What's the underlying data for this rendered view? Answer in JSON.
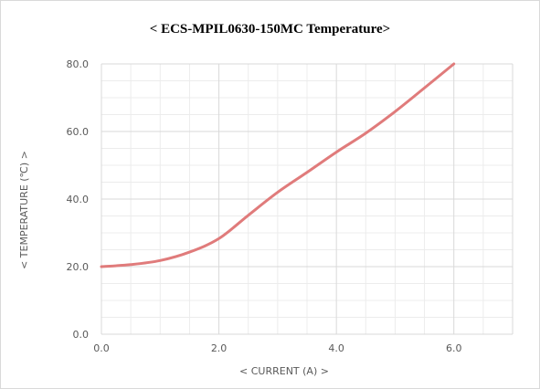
{
  "chart_data": {
    "type": "line",
    "title": "< ECS-MPIL0630-150MC  Temperature>",
    "xlabel": "< CURRENT (A) >",
    "ylabel": "< TEMPERATURE (℃) >",
    "xlim": [
      0,
      7
    ],
    "ylim": [
      0,
      80
    ],
    "x_ticks": [
      "0.0",
      "2.0",
      "4.0",
      "6.0"
    ],
    "x_tick_values": [
      0,
      2,
      4,
      6
    ],
    "y_ticks": [
      "0.0",
      "20.0",
      "40.0",
      "60.0",
      "80.0"
    ],
    "y_tick_values": [
      0,
      20,
      40,
      60,
      80
    ],
    "grid": true,
    "series": [
      {
        "color": "#e07b7b",
        "x": [
          0,
          0.5,
          1.0,
          1.5,
          2.0,
          2.5,
          3.0,
          3.5,
          4.0,
          4.5,
          5.0,
          5.5,
          6.0
        ],
        "y": [
          20.0,
          20.6,
          21.8,
          24.3,
          28.3,
          35.2,
          42.0,
          47.9,
          53.9,
          59.5,
          65.9,
          72.9,
          80.0
        ]
      }
    ]
  }
}
